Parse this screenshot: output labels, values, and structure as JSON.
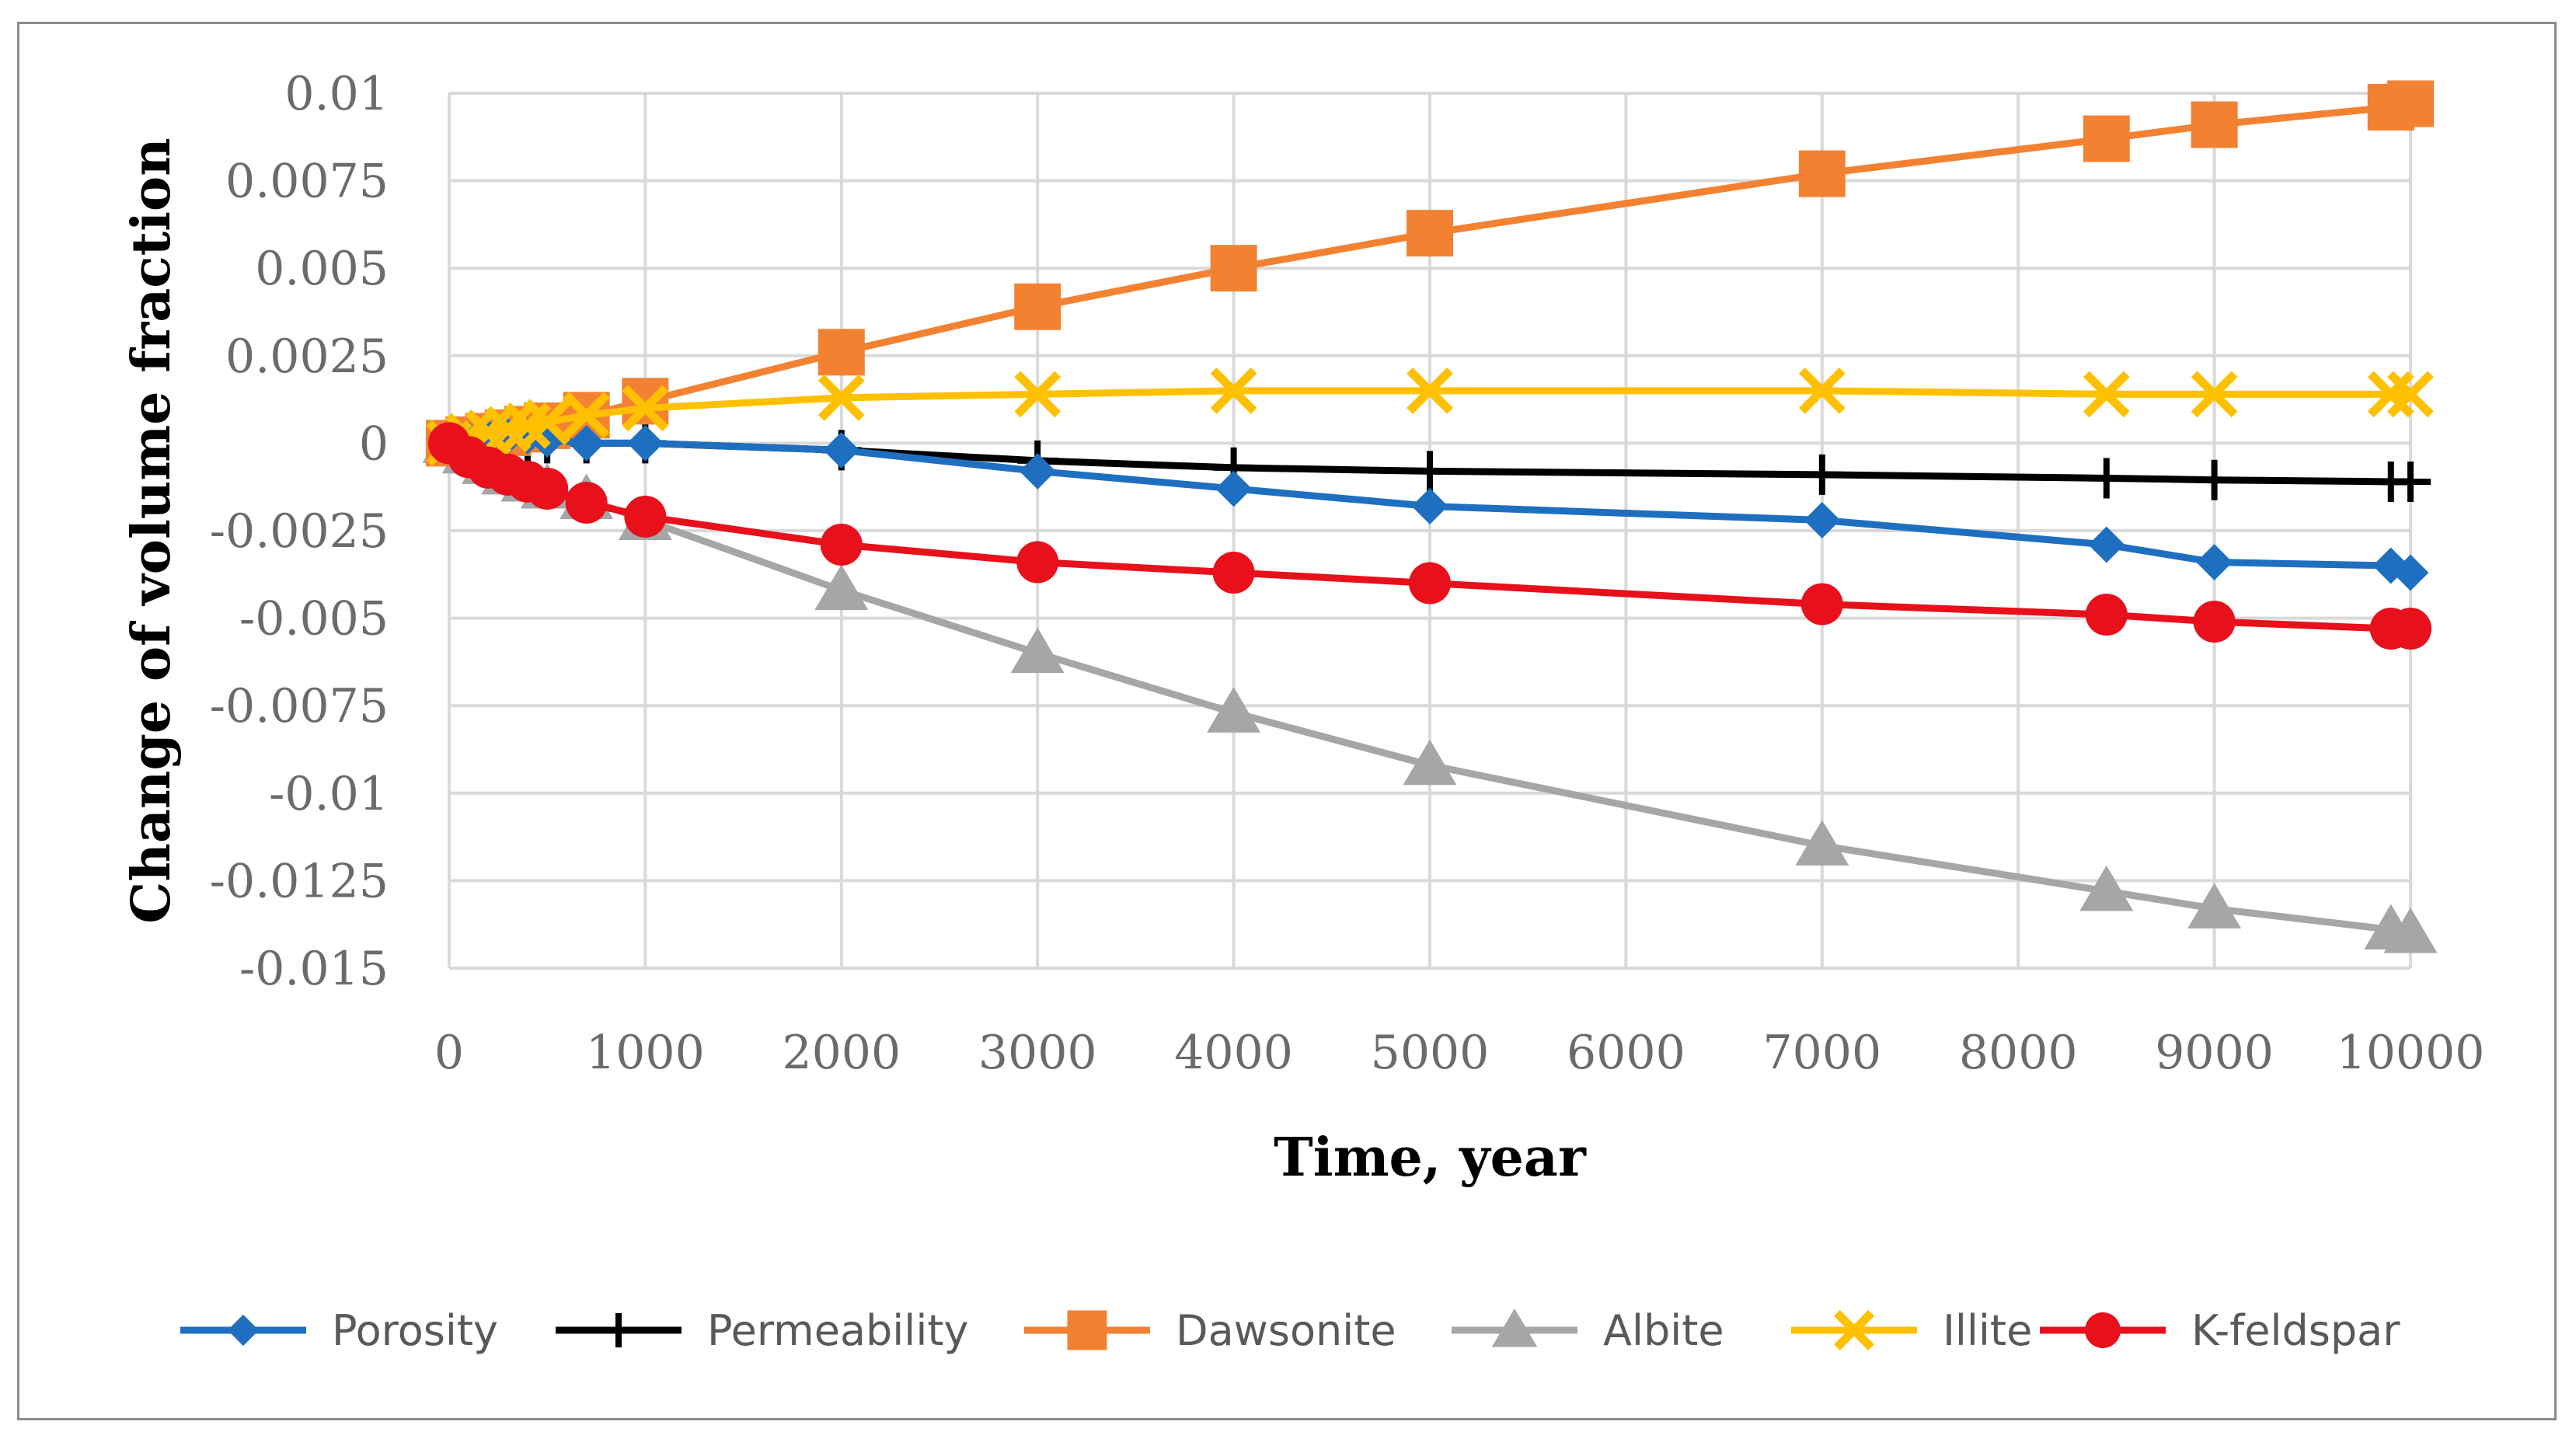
{
  "chart_data": {
    "type": "line",
    "title": "",
    "xlabel": "Time, year",
    "ylabel": "Change of volume fraction",
    "xlim": [
      0,
      10000
    ],
    "ylim": [
      -0.015,
      0.01
    ],
    "x_ticks": [
      0,
      1000,
      2000,
      3000,
      4000,
      5000,
      6000,
      7000,
      8000,
      9000,
      10000
    ],
    "x_tick_labels": [
      "0",
      "1000",
      "2000",
      "3000",
      "4000",
      "5000",
      "6000",
      "7000",
      "8000",
      "9000",
      "10000"
    ],
    "y_ticks": [
      0.01,
      0.0075,
      0.005,
      0.0025,
      0,
      -0.0025,
      -0.005,
      -0.0075,
      -0.01,
      -0.0125,
      -0.015
    ],
    "y_tick_labels": [
      "0.01",
      "0.0075",
      "0.005",
      "0.0025",
      "0",
      "-0.0025",
      "-0.005",
      "-0.0075",
      "-0.01",
      "-0.0125",
      "-0.015"
    ],
    "grid": true,
    "legend_position": "bottom",
    "series": [
      {
        "name": "Porosity",
        "color": "#1f6fc1",
        "marker": "diamond",
        "x": [
          0,
          100,
          200,
          300,
          400,
          500,
          700,
          1000,
          2000,
          3000,
          4000,
          5000,
          7000,
          8450,
          9000,
          9900,
          10000
        ],
        "y": [
          0,
          0.0001,
          0.00015,
          0.0002,
          0.0002,
          0.0001,
          0,
          0,
          -0.0002,
          -0.0008,
          -0.0013,
          -0.0018,
          -0.0022,
          -0.0029,
          -0.0034,
          -0.0035,
          -0.0037
        ]
      },
      {
        "name": "Permeability",
        "color": "#000000",
        "marker": "plus",
        "x": [
          0,
          100,
          200,
          300,
          400,
          500,
          700,
          1000,
          2000,
          3000,
          4000,
          5000,
          7000,
          8450,
          9000,
          9900,
          10000
        ],
        "y": [
          0,
          0,
          0,
          0,
          0,
          0,
          0,
          0,
          -0.0002,
          -0.0005,
          -0.0007,
          -0.0008,
          -0.0009,
          -0.001,
          -0.00105,
          -0.0011,
          -0.0011
        ]
      },
      {
        "name": "Dawsonite",
        "color": "#f28232",
        "marker": "square",
        "x": [
          0,
          100,
          200,
          300,
          400,
          500,
          700,
          1000,
          2000,
          3000,
          4000,
          5000,
          7000,
          8450,
          9000,
          9900,
          10000
        ],
        "y": [
          0,
          0.0001,
          0.0002,
          0.0003,
          0.0004,
          0.0005,
          0.0008,
          0.0012,
          0.0026,
          0.0039,
          0.005,
          0.006,
          0.0077,
          0.0087,
          0.0091,
          0.0096,
          0.0097
        ]
      },
      {
        "name": "Albite",
        "color": "#a6a6a6",
        "marker": "triangle",
        "x": [
          0,
          100,
          200,
          300,
          400,
          500,
          700,
          1000,
          2000,
          3000,
          4000,
          5000,
          7000,
          8450,
          9000,
          9900,
          10000
        ],
        "y": [
          0,
          -0.0003,
          -0.0006,
          -0.0009,
          -0.0011,
          -0.0013,
          -0.0016,
          -0.0022,
          -0.0042,
          -0.006,
          -0.0077,
          -0.0092,
          -0.0115,
          -0.0128,
          -0.0133,
          -0.0139,
          -0.014
        ]
      },
      {
        "name": "Illite",
        "color": "#ffc000",
        "marker": "x",
        "x": [
          0,
          100,
          200,
          300,
          400,
          500,
          700,
          1000,
          2000,
          3000,
          4000,
          5000,
          7000,
          8450,
          9000,
          9900,
          10000
        ],
        "y": [
          0,
          0.0002,
          0.0003,
          0.0004,
          0.0005,
          0.0006,
          0.0008,
          0.001,
          0.0013,
          0.0014,
          0.0015,
          0.0015,
          0.0015,
          0.0014,
          0.0014,
          0.0014,
          0.0014
        ]
      },
      {
        "name": "K-feldspar",
        "color": "#e8101b",
        "marker": "circle",
        "x": [
          0,
          100,
          200,
          300,
          400,
          500,
          700,
          1000,
          2000,
          3000,
          4000,
          5000,
          7000,
          8450,
          9000,
          9900,
          10000
        ],
        "y": [
          0,
          -0.0004,
          -0.0007,
          -0.0009,
          -0.0011,
          -0.0013,
          -0.0017,
          -0.0021,
          -0.0029,
          -0.0034,
          -0.0037,
          -0.004,
          -0.0046,
          -0.0049,
          -0.0051,
          -0.0053,
          -0.0053
        ]
      }
    ]
  }
}
